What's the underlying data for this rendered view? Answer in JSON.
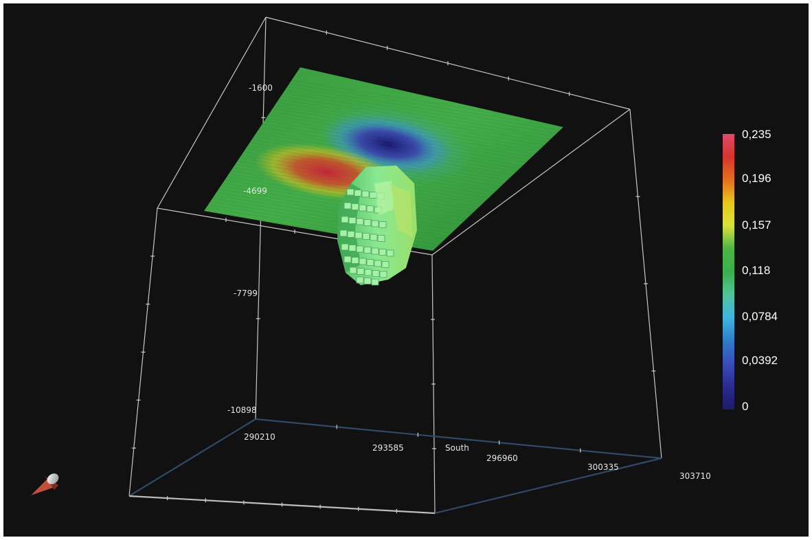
{
  "scene": {
    "axis_labels": {
      "depth_ticks": [
        "-1600",
        "-4699",
        "-7799",
        "-10898"
      ],
      "easting_ticks": [
        "290210",
        "293585",
        "296960",
        "300335",
        "303710"
      ],
      "direction": "South"
    }
  },
  "colorbar": {
    "labels": [
      "0,235",
      "0,196",
      "0,157",
      "0,118",
      "0,0784",
      "0,0392",
      "0"
    ],
    "stops": [
      "#df4a6e",
      "#d9342c",
      "#e46f1f",
      "#e8c81c",
      "#d8e23a",
      "#4cb544",
      "#39b04c",
      "#52c49c",
      "#3fb4e0",
      "#2f7ec8",
      "#3a4dbb",
      "#2b2a8e",
      "#1f1a6b"
    ]
  },
  "colors": {
    "background": "#111111",
    "box_edge": "#c8c8c8",
    "floor_edge": "#2e4a66",
    "voxel_body": "#7fe08c",
    "surface_base": "#3aa444"
  },
  "icons": {
    "orientation": "orientation-cone-icon"
  }
}
